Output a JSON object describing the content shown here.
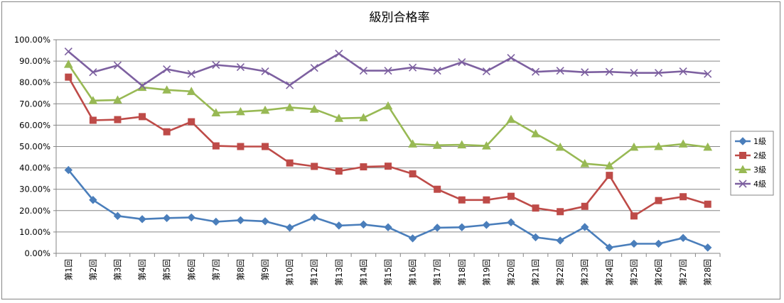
{
  "chart_data": {
    "type": "line",
    "title": "級別合格率",
    "xlabel": "",
    "ylabel": "",
    "ylim": [
      0,
      1
    ],
    "yticks": [
      "0.00%",
      "10.00%",
      "20.00%",
      "30.00%",
      "40.00%",
      "50.00%",
      "60.00%",
      "70.00%",
      "80.00%",
      "90.00%",
      "100.00%"
    ],
    "grid": true,
    "legend_position": "right",
    "categories": [
      "第1回",
      "第2回",
      "第3回",
      "第4回",
      "第5回",
      "第6回",
      "第7回",
      "第8回",
      "第9回",
      "第10回",
      "第12回",
      "第13回",
      "第14回",
      "第15回",
      "第16回",
      "第17回",
      "第18回",
      "第19回",
      "第20回",
      "第21回",
      "第22回",
      "第23回",
      "第24回",
      "第25回",
      "第26回",
      "第27回",
      "第28回"
    ],
    "series": [
      {
        "name": "1級",
        "color": "#4A7EBB",
        "marker": "diamond",
        "values": [
          0.39,
          0.25,
          0.175,
          0.16,
          0.165,
          0.168,
          0.148,
          0.155,
          0.15,
          0.12,
          0.168,
          0.13,
          0.135,
          0.122,
          0.07,
          0.12,
          0.122,
          0.133,
          0.145,
          0.075,
          0.06,
          0.123,
          0.027,
          0.045,
          0.045,
          0.072,
          0.027
        ]
      },
      {
        "name": "2級",
        "color": "#BE4B48",
        "marker": "square",
        "values": [
          0.825,
          0.623,
          0.626,
          0.64,
          0.569,
          0.616,
          0.503,
          0.5,
          0.5,
          0.423,
          0.407,
          0.385,
          0.405,
          0.408,
          0.372,
          0.3,
          0.25,
          0.25,
          0.267,
          0.212,
          0.195,
          0.22,
          0.365,
          0.175,
          0.247,
          0.265,
          0.23
        ]
      },
      {
        "name": "3級",
        "color": "#98B954",
        "marker": "triangle",
        "values": [
          0.885,
          0.715,
          0.718,
          0.777,
          0.765,
          0.758,
          0.658,
          0.663,
          0.67,
          0.683,
          0.675,
          0.632,
          0.635,
          0.69,
          0.512,
          0.506,
          0.508,
          0.503,
          0.627,
          0.56,
          0.497,
          0.42,
          0.41,
          0.497,
          0.5,
          0.512,
          0.497
        ]
      },
      {
        "name": "4級",
        "color": "#7D60A0",
        "marker": "x",
        "values": [
          0.945,
          0.848,
          0.88,
          0.785,
          0.862,
          0.84,
          0.882,
          0.872,
          0.852,
          0.787,
          0.868,
          0.935,
          0.855,
          0.855,
          0.87,
          0.855,
          0.895,
          0.852,
          0.915,
          0.85,
          0.855,
          0.848,
          0.85,
          0.845,
          0.845,
          0.852,
          0.84
        ]
      }
    ]
  }
}
